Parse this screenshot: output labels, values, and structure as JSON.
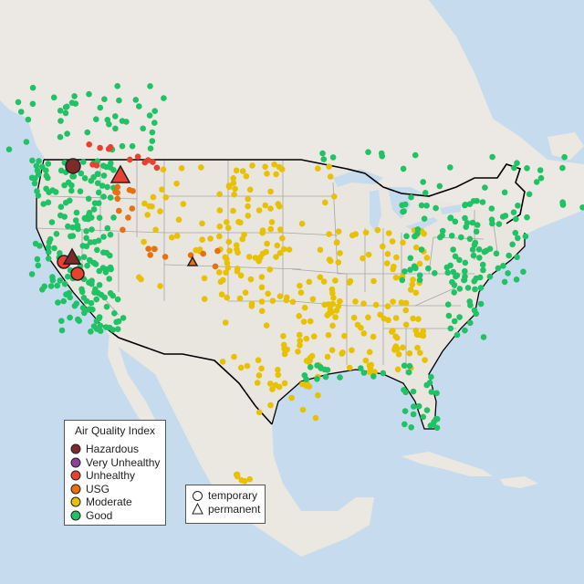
{
  "legend": {
    "title": "Air Quality Index",
    "categories": [
      {
        "label": "Hazardous",
        "color": "#7e2a28"
      },
      {
        "label": "Very Unhealthy",
        "color": "#8f3f97"
      },
      {
        "label": "Unhealthy",
        "color": "#e8412f"
      },
      {
        "label": "USG",
        "color": "#e8700f"
      },
      {
        "label": "Moderate",
        "color": "#e8c100"
      },
      {
        "label": "Good",
        "color": "#1fc265"
      }
    ]
  },
  "shape_legend": {
    "items": [
      {
        "label": "temporary",
        "shape": "circle"
      },
      {
        "label": "permanent",
        "shape": "triangle"
      }
    ]
  },
  "colors": {
    "water": "#c7dbee",
    "land": "#ece8e3",
    "border": "#000000",
    "state_lines": "#a7a7a7",
    "no_data": "#bcbcbc"
  }
}
